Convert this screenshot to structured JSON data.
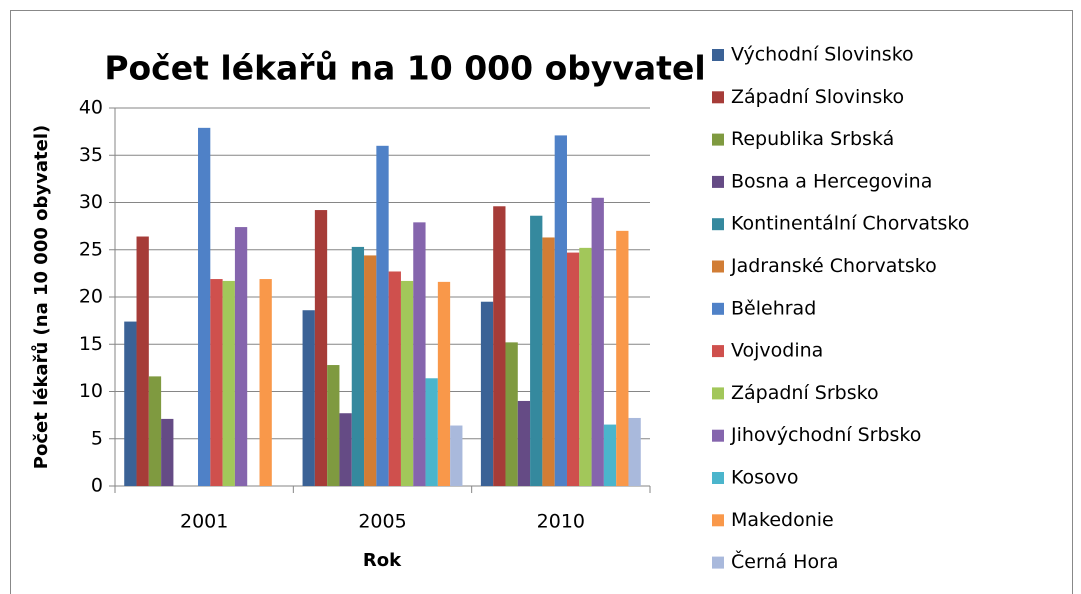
{
  "chart_data": {
    "type": "bar",
    "title": "Počet lékařů na 10 000 obyvatel",
    "x_label": "Rok",
    "y_label": "Počet lékařů (na 10 000 obyvatel)",
    "categories": [
      "2001",
      "2005",
      "2010"
    ],
    "ylim": [
      0,
      40
    ],
    "yticks": [
      0,
      5,
      10,
      15,
      20,
      25,
      30,
      35,
      40
    ],
    "grid": true,
    "legend": "right",
    "series": [
      {
        "name": "Východní Slovinsko",
        "color": "#3B6296",
        "values": [
          17.4,
          18.6,
          19.5
        ]
      },
      {
        "name": "Západní Slovinsko",
        "color": "#A63C38",
        "values": [
          26.4,
          29.2,
          29.6
        ]
      },
      {
        "name": "Republika Srbská",
        "color": "#7F9A40",
        "values": [
          11.6,
          12.8,
          15.2
        ]
      },
      {
        "name": "Bosna a Hercegovina",
        "color": "#654B85",
        "values": [
          7.1,
          7.7,
          9.0
        ]
      },
      {
        "name": "Kontinentální Chorvatsko",
        "color": "#35899E",
        "values": [
          null,
          25.3,
          28.6
        ]
      },
      {
        "name": "Jadranské Chorvatsko",
        "color": "#D17D35",
        "values": [
          null,
          24.4,
          26.3
        ]
      },
      {
        "name": "Bělehrad",
        "color": "#4F81C7",
        "values": [
          37.9,
          36.0,
          37.1
        ]
      },
      {
        "name": "Vojvodina",
        "color": "#CF504D",
        "values": [
          21.9,
          22.7,
          24.7
        ]
      },
      {
        "name": "Západní Srbsko",
        "color": "#A2C75A",
        "values": [
          21.7,
          21.7,
          25.2
        ]
      },
      {
        "name": "Jihovýchodní Srbsko",
        "color": "#8565AD",
        "values": [
          27.4,
          27.9,
          30.5
        ]
      },
      {
        "name": "Kosovo",
        "color": "#4BB5CC",
        "values": [
          null,
          11.4,
          6.5
        ]
      },
      {
        "name": "Makedonie",
        "color": "#F9984A",
        "values": [
          21.9,
          21.6,
          27.0
        ]
      },
      {
        "name": "Černá Hora",
        "color": "#A9B9DC",
        "values": [
          null,
          6.4,
          7.2
        ]
      }
    ]
  }
}
